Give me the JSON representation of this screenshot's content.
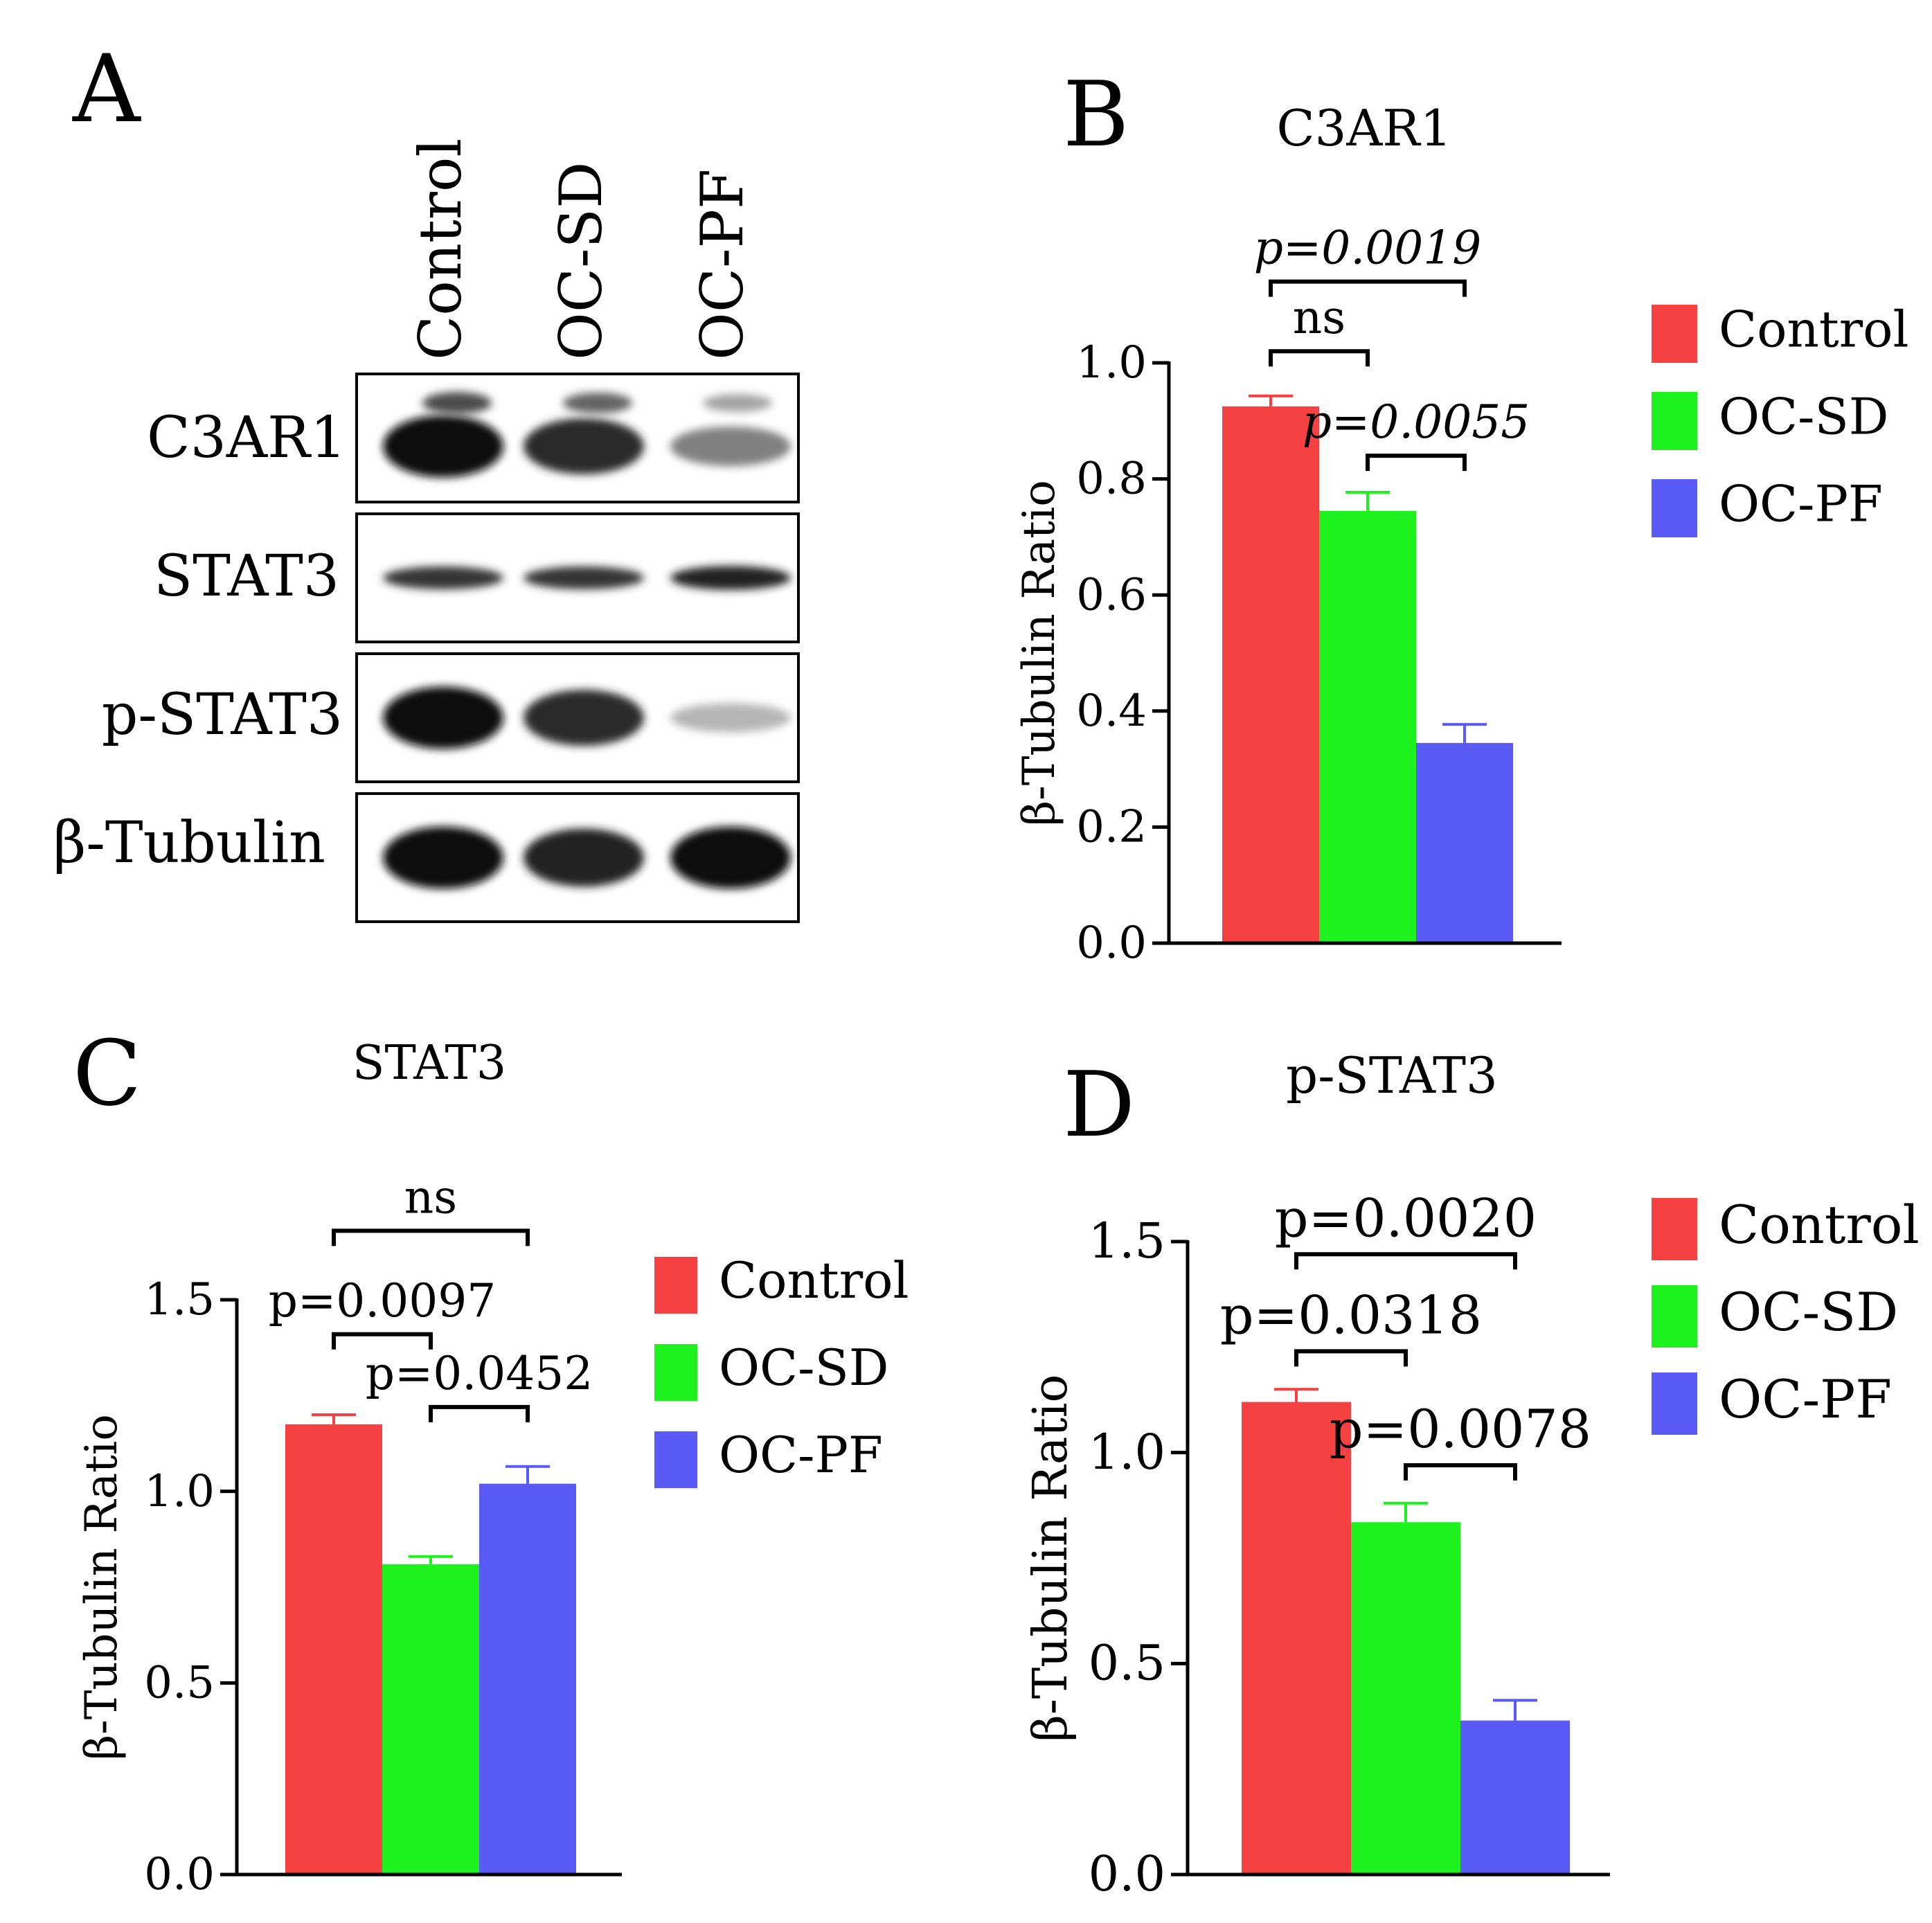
{
  "panel_letters": [
    "A",
    "B",
    "C",
    "D"
  ],
  "western_blot": {
    "lanes": [
      "Control",
      "OC-SD",
      "OC-PF"
    ],
    "rows": [
      {
        "label": "C3AR1",
        "intensity": [
          1.0,
          0.85,
          0.45
        ]
      },
      {
        "label": "STAT3",
        "intensity": [
          0.8,
          0.8,
          0.9
        ]
      },
      {
        "label": "p-STAT3",
        "intensity": [
          1.0,
          0.85,
          0.2
        ]
      },
      {
        "label": "β-Tubulin",
        "intensity": [
          1.0,
          0.9,
          1.0
        ]
      }
    ]
  },
  "colors": {
    "control": "#f54141",
    "oc_sd": "#1ef21e",
    "oc_pf": "#5a5af7",
    "axis": "#000000"
  },
  "chart_data": [
    {
      "panel": "B",
      "type": "bar",
      "title": "C3AR1",
      "ylabel": "β-Tubulin Ratio",
      "categories": [
        "Control",
        "OC-SD",
        "OC-PF"
      ],
      "values": [
        0.925,
        0.745,
        0.345
      ],
      "errors": [
        0.018,
        0.032,
        0.032
      ],
      "ylim": [
        0,
        1.0
      ],
      "yticks": [
        "0.0",
        "0.2",
        "0.4",
        "0.6",
        "0.8",
        "1.0"
      ],
      "ytick_values": [
        0,
        0.2,
        0.4,
        0.6,
        0.8,
        1.0
      ],
      "italic_annotations": true,
      "legend": [
        "Control",
        "OC-SD",
        "OC-PF"
      ],
      "brackets": [
        {
          "from": 0,
          "to": 2,
          "y": 1.14,
          "label": "p=0.0019"
        },
        {
          "from": 0,
          "to": 1,
          "y": 1.02,
          "label": "ns"
        },
        {
          "from": 1,
          "to": 2,
          "y": 0.84,
          "label": "p=0.0055"
        }
      ]
    },
    {
      "panel": "C",
      "type": "bar",
      "title": "STAT3",
      "ylabel": "β-Tubulin Ratio",
      "categories": [
        "Control",
        "OC-SD",
        "OC-PF"
      ],
      "values": [
        1.175,
        0.81,
        1.02
      ],
      "errors": [
        0.025,
        0.02,
        0.045
      ],
      "ylim": [
        0,
        1.5
      ],
      "yticks": [
        "0.0",
        "0.5",
        "1.0",
        "1.5"
      ],
      "ytick_values": [
        0,
        0.5,
        1.0,
        1.5
      ],
      "italic_annotations": false,
      "legend": [
        "Control",
        "OC-SD",
        "OC-PF"
      ],
      "brackets": [
        {
          "from": 0,
          "to": 2,
          "y": 1.68,
          "label": "ns"
        },
        {
          "from": 0,
          "to": 1,
          "y": 1.41,
          "label": "p=0.0097"
        },
        {
          "from": 1,
          "to": 2,
          "y": 1.22,
          "label": "p=0.0452"
        }
      ]
    },
    {
      "panel": "D",
      "type": "bar",
      "title": "p-STAT3",
      "ylabel": "β-Tubulin Ratio",
      "categories": [
        "Control",
        "OC-SD",
        "OC-PF"
      ],
      "values": [
        1.12,
        0.835,
        0.365
      ],
      "errors": [
        0.03,
        0.045,
        0.048
      ],
      "ylim": [
        0,
        1.5
      ],
      "yticks": [
        "0.0",
        "0.5",
        "1.0",
        "1.5"
      ],
      "ytick_values": [
        0,
        0.5,
        1.0,
        1.5
      ],
      "italic_annotations": false,
      "legend": [
        "Control",
        "OC-SD",
        "OC-PF"
      ],
      "brackets": [
        {
          "from": 0,
          "to": 2,
          "y": 1.47,
          "label": "p=0.0020"
        },
        {
          "from": 0,
          "to": 1,
          "y": 1.24,
          "label": "p=0.0318"
        },
        {
          "from": 1,
          "to": 2,
          "y": 0.97,
          "label": "p=0.0078"
        }
      ]
    }
  ]
}
